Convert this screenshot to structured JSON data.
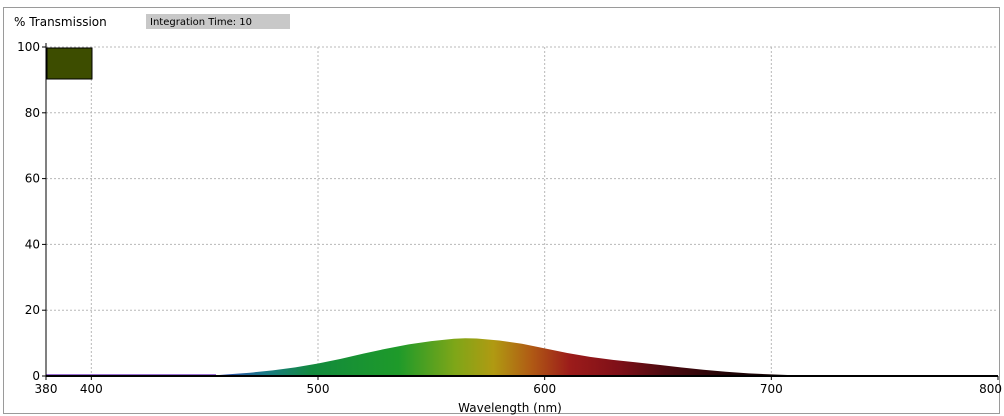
{
  "chart_data": {
    "type": "area",
    "ylabel": "% Transmission",
    "xlabel": "Wavelength (nm)",
    "integration_time_label": "Integration Time: 10",
    "xlim": [
      380,
      800
    ],
    "ylim": [
      0,
      100
    ],
    "x_ticks": [
      380,
      400,
      500,
      600,
      700,
      800
    ],
    "y_ticks": [
      0,
      20,
      40,
      60,
      80,
      100
    ],
    "grid": true,
    "swatch_color": "#3d4d00",
    "series": [
      {
        "x": [
          380,
          400,
          420,
          440,
          450,
          455,
          460,
          470,
          480,
          490,
          500,
          510,
          520,
          530,
          540,
          550,
          560,
          565,
          570,
          580,
          590,
          600,
          610,
          620,
          630,
          640,
          650,
          660,
          670,
          680,
          690,
          700,
          710,
          720
        ],
        "y": [
          0,
          0,
          0,
          0,
          0,
          0.2,
          0.5,
          1.0,
          1.7,
          2.6,
          3.8,
          5.2,
          6.8,
          8.3,
          9.6,
          10.6,
          11.3,
          11.5,
          11.4,
          10.8,
          9.8,
          8.4,
          7.0,
          5.8,
          4.9,
          4.2,
          3.4,
          2.6,
          1.9,
          1.3,
          0.8,
          0.5,
          0.2,
          0
        ]
      }
    ]
  }
}
